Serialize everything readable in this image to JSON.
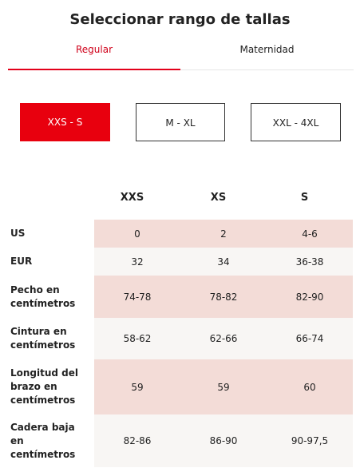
{
  "title": "Seleccionar rango de tallas",
  "tabs": [
    {
      "label": "Regular",
      "active": true
    },
    {
      "label": "Maternidad",
      "active": false
    }
  ],
  "size_ranges": [
    {
      "label": "XXS - S",
      "selected": true
    },
    {
      "label": "M - XL",
      "selected": false
    },
    {
      "label": "XXL - 4XL",
      "selected": false
    }
  ],
  "table": {
    "columns": [
      "XXS",
      "XS",
      "S"
    ],
    "rows": [
      {
        "label": "US",
        "values": [
          "0",
          "2",
          "4-6"
        ]
      },
      {
        "label": "EUR",
        "values": [
          "32",
          "34",
          "36-38"
        ]
      },
      {
        "label": "Pecho en centímetros",
        "values": [
          "74-78",
          "78-82",
          "82-90"
        ]
      },
      {
        "label": "Cintura en centímetros",
        "values": [
          "58-62",
          "62-66",
          "66-74"
        ]
      },
      {
        "label": "Longitud del brazo en centímetros",
        "values": [
          "59",
          "59",
          "60"
        ]
      },
      {
        "label": "Cadera baja en centímetros",
        "values": [
          "82-86",
          "86-90",
          "90-97,5"
        ]
      }
    ]
  },
  "colors": {
    "accent": "#e8000e",
    "row_pink": "#f3dcd7",
    "row_grey": "#f8f6f4"
  }
}
